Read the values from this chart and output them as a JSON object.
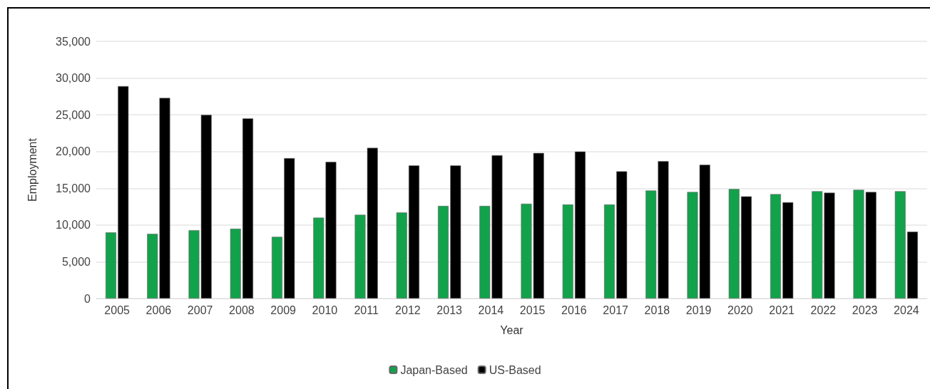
{
  "chart_data": {
    "type": "bar",
    "xlabel": "Year",
    "ylabel": "Employment",
    "categories": [
      "2005",
      "2006",
      "2007",
      "2008",
      "2009",
      "2010",
      "2011",
      "2012",
      "2013",
      "2014",
      "2015",
      "2016",
      "2017",
      "2018",
      "2019",
      "2020",
      "2021",
      "2022",
      "2023",
      "2024"
    ],
    "series": [
      {
        "name": "Japan-Based",
        "color": "#13a24c",
        "values": [
          9000,
          8800,
          9300,
          9500,
          8400,
          11000,
          11400,
          11700,
          12600,
          12600,
          12900,
          12800,
          12800,
          14700,
          14500,
          14900,
          14200,
          14600,
          14800,
          14600
        ]
      },
      {
        "name": "US-Based",
        "color": "#000000",
        "values": [
          28900,
          27300,
          25000,
          24500,
          19100,
          18600,
          20500,
          18100,
          18100,
          19500,
          19800,
          20000,
          17300,
          18700,
          18200,
          13900,
          13100,
          14400,
          14500,
          9100
        ]
      }
    ],
    "ylim": [
      0,
      35000
    ],
    "yticks": [
      0,
      {
        "value": 5000,
        "label": "5,000"
      },
      {
        "value": 10000,
        "label": "10,000"
      },
      {
        "value": 15000,
        "label": "15,000"
      },
      {
        "value": 20000,
        "label": "20,000"
      },
      {
        "value": 25000,
        "label": "25,000"
      },
      {
        "value": 30000,
        "label": "30,000"
      },
      {
        "value": 35000,
        "label": "35,000"
      }
    ],
    "grid": "y",
    "legend": "bottom"
  }
}
